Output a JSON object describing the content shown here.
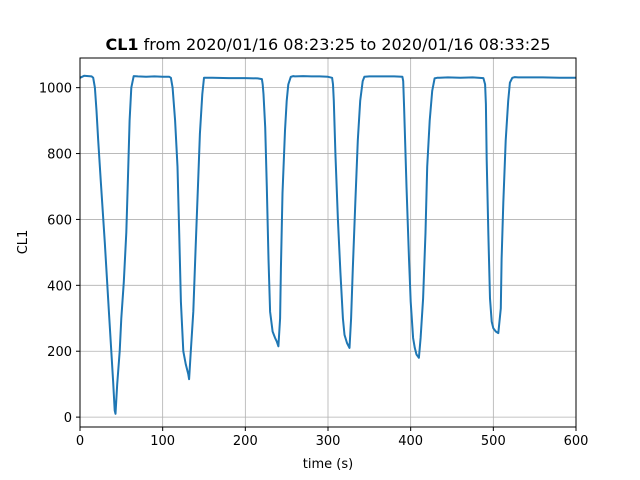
{
  "chart_data": {
    "type": "line",
    "title_bold": "CL1",
    "title_rest": " from 2020/01/16 08:23:25 to 2020/01/16 08:33:25",
    "xlabel": "time (s)",
    "ylabel": "CL1",
    "xlim": [
      0,
      600
    ],
    "ylim": [
      -30,
      1090
    ],
    "xticks": [
      0,
      100,
      200,
      300,
      400,
      500,
      600
    ],
    "yticks": [
      0,
      200,
      400,
      600,
      800,
      1000
    ],
    "grid": true,
    "line_color": "#1f77b4",
    "series": [
      {
        "x": [
          0,
          5,
          10,
          14,
          16,
          18,
          20,
          22,
          25,
          30,
          35,
          40,
          42,
          43,
          45,
          48,
          50,
          53,
          56,
          58,
          60,
          62,
          65,
          70,
          80,
          90,
          100,
          108,
          110,
          112,
          115,
          118,
          120,
          122,
          125,
          128,
          131,
          132,
          134,
          137,
          140,
          143,
          145,
          148,
          150,
          160,
          180,
          200,
          215,
          220,
          221,
          222,
          224,
          226,
          228,
          230,
          233,
          236,
          238,
          240,
          242,
          243,
          245,
          248,
          250,
          252,
          255,
          258,
          260,
          270,
          280,
          290,
          300,
          305,
          306,
          307,
          309,
          312,
          315,
          318,
          320,
          323,
          326,
          328,
          330,
          333,
          336,
          339,
          342,
          344,
          350,
          360,
          370,
          380,
          390,
          391,
          392,
          395,
          398,
          400,
          403,
          405,
          407,
          410,
          412,
          415,
          418,
          420,
          423,
          426,
          429,
          432,
          435,
          445,
          460,
          475,
          488,
          490,
          491,
          492,
          494,
          496,
          498,
          500,
          503,
          506,
          509,
          510,
          512,
          515,
          518,
          520,
          523,
          526,
          530,
          545,
          560,
          580,
          600
        ],
        "y": [
          1030,
          1036,
          1035,
          1034,
          1030,
          1000,
          930,
          840,
          720,
          530,
          320,
          110,
          20,
          10,
          100,
          200,
          300,
          410,
          560,
          720,
          900,
          1000,
          1035,
          1034,
          1033,
          1034,
          1033,
          1033,
          1030,
          1000,
          900,
          760,
          560,
          350,
          200,
          160,
          130,
          115,
          200,
          320,
          520,
          720,
          860,
          980,
          1030,
          1030,
          1029,
          1029,
          1028,
          1026,
          1010,
          980,
          880,
          700,
          480,
          320,
          260,
          240,
          230,
          215,
          300,
          450,
          680,
          870,
          960,
          1010,
          1033,
          1035,
          1034,
          1035,
          1034,
          1034,
          1033,
          1030,
          1010,
          960,
          800,
          600,
          440,
          300,
          250,
          225,
          210,
          300,
          450,
          650,
          840,
          960,
          1020,
          1033,
          1034,
          1034,
          1034,
          1034,
          1033,
          1020,
          940,
          700,
          480,
          350,
          240,
          210,
          190,
          180,
          240,
          360,
          560,
          760,
          900,
          990,
          1028,
          1030,
          1030,
          1031,
          1030,
          1031,
          1029,
          1010,
          950,
          780,
          550,
          360,
          290,
          270,
          260,
          255,
          330,
          480,
          650,
          840,
          960,
          1015,
          1030,
          1032,
          1031,
          1031,
          1031,
          1030,
          1030
        ]
      }
    ]
  }
}
